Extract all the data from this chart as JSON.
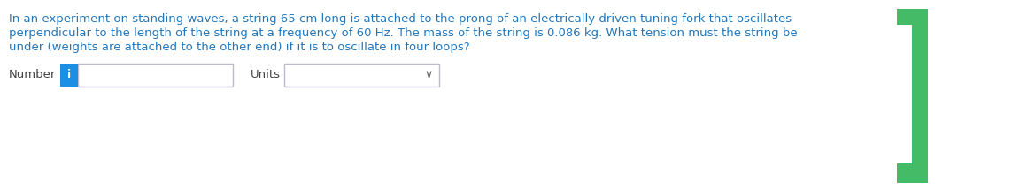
{
  "question_text_line1": "In an experiment on standing waves, a string 65 cm long is attached to the prong of an electrically driven tuning fork that oscillates",
  "question_text_line2": "perpendicular to the length of the string at a frequency of 60 Hz. The mass of the string is 0.086 kg. What tension must the string be",
  "question_text_line3": "under (weights are attached to the other end) if it is to oscillate in four loops?",
  "label_number": "Number",
  "label_units": "Units",
  "text_color": "#2277bb",
  "background_color": "#ffffff",
  "info_button_color": "#1a8fe3",
  "info_button_text": "i",
  "input_box_border": "#bbbbcc",
  "dropdown_border": "#bbbbcc",
  "green_color": "#44bb66",
  "font_size_question": 9.5,
  "font_size_label": 9.5,
  "font_size_info": 9.0
}
